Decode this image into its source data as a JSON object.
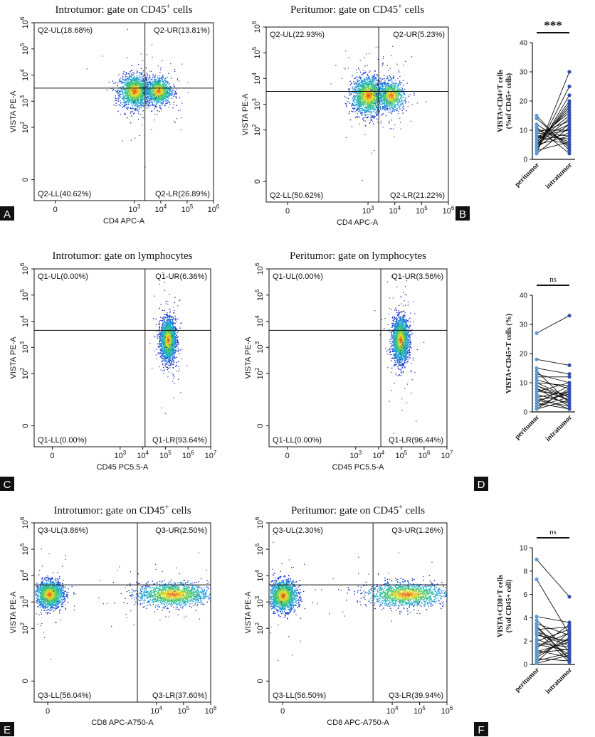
{
  "panels_labels": [
    "A",
    "B",
    "C",
    "D",
    "E",
    "F"
  ],
  "chart_data": [
    {
      "type": "scatter",
      "panel": "A",
      "title_main": "Introtumor: gate on CD45",
      "title_sup": "+",
      "title_tail": " cells",
      "xlabel": "CD4 APC-A",
      "ylabel": "VISTA PE-A",
      "x_ticks": [
        {
          "label": "0",
          "sup": "",
          "v": 0
        },
        {
          "label": "10",
          "sup": "3",
          "v": 3
        },
        {
          "label": "10",
          "sup": "4",
          "v": 4
        },
        {
          "label": "10",
          "sup": "5",
          "v": 5
        },
        {
          "label": "10",
          "sup": "6",
          "v": 6
        }
      ],
      "y_ticks": [
        {
          "label": "0",
          "sup": "",
          "v": 0
        },
        {
          "label": "10",
          "sup": "2",
          "v": 2
        },
        {
          "label": "10",
          "sup": "3",
          "v": 3
        },
        {
          "label": "10",
          "sup": "4",
          "v": 4
        },
        {
          "label": "10",
          "sup": "5",
          "v": 5
        },
        {
          "label": "10",
          "sup": "6",
          "v": 6
        }
      ],
      "xlim": [
        -0.8,
        6
      ],
      "ylim": [
        -0.8,
        6
      ],
      "gate": {
        "x": 3.4,
        "y": 3.5
      },
      "quadrants": {
        "UL": "Q2-UL(18.68%)",
        "UR": "Q2-UR(13.81%)",
        "LL": "Q2-LL(40.62%)",
        "LR": "Q2-LR(26.89%)"
      },
      "clusters": [
        {
          "cx": 3.0,
          "cy": 3.4,
          "sx": 0.28,
          "sy": 0.3,
          "n": 1500
        },
        {
          "cx": 3.9,
          "cy": 3.4,
          "sx": 0.24,
          "sy": 0.25,
          "n": 1000
        }
      ]
    },
    {
      "type": "scatter",
      "panel": "B",
      "title_main": "Peritumor: gate on CD45",
      "title_sup": "+",
      "title_tail": " cells",
      "xlabel": "CD4 APC-A",
      "ylabel": "VISTA PE-A",
      "x_ticks": [
        {
          "label": "0",
          "sup": "",
          "v": 0
        },
        {
          "label": "10",
          "sup": "3",
          "v": 3
        },
        {
          "label": "10",
          "sup": "4",
          "v": 4
        },
        {
          "label": "10",
          "sup": "5",
          "v": 5
        },
        {
          "label": "10",
          "sup": "6",
          "v": 6
        }
      ],
      "y_ticks": [
        {
          "label": "0",
          "sup": "",
          "v": 0
        },
        {
          "label": "10",
          "sup": "2",
          "v": 2
        },
        {
          "label": "10",
          "sup": "3",
          "v": 3
        },
        {
          "label": "10",
          "sup": "4",
          "v": 4
        },
        {
          "label": "10",
          "sup": "5",
          "v": 5
        },
        {
          "label": "10",
          "sup": "6",
          "v": 6
        }
      ],
      "xlim": [
        -0.8,
        6
      ],
      "ylim": [
        -0.8,
        6
      ],
      "gate": {
        "x": 3.4,
        "y": 3.5
      },
      "quadrants": {
        "UL": "Q2-UL(22.93%)",
        "UR": "Q2-UR(5.23%)",
        "LL": "Q2-LL(50.62%)",
        "LR": "Q2-LR(21.22%)"
      },
      "clusters": [
        {
          "cx": 3.0,
          "cy": 3.35,
          "sx": 0.3,
          "sy": 0.35,
          "n": 1700
        },
        {
          "cx": 3.85,
          "cy": 3.35,
          "sx": 0.24,
          "sy": 0.28,
          "n": 800
        }
      ]
    },
    {
      "type": "line",
      "panel": "paired-1",
      "ylabel_line1": "VISTA+CD4+T cells",
      "ylabel_line2": "(%of CD45+ cells)",
      "ylim": [
        0,
        40
      ],
      "y_ticks": [
        0,
        10,
        20,
        30,
        40
      ],
      "categories": [
        "peritumor",
        "intratumor"
      ],
      "significance": "***",
      "peritumor": [
        2,
        3,
        4,
        5,
        6,
        7,
        8,
        9,
        10,
        12,
        14,
        15,
        3,
        5,
        6,
        8,
        2,
        4,
        7,
        9,
        11,
        3,
        5,
        6,
        4,
        8,
        10
      ],
      "intratumor": [
        30,
        25,
        20,
        18,
        15,
        12,
        10,
        8,
        6,
        5,
        4,
        3,
        22,
        14,
        9,
        7,
        11,
        19,
        16,
        13,
        2,
        6,
        8,
        17,
        12,
        5,
        10
      ]
    },
    {
      "type": "scatter",
      "panel": "C",
      "title_main": "Introtumor: gate on lymphocytes",
      "title_sup": "",
      "title_tail": "",
      "xlabel": "CD45 PC5.5-A",
      "ylabel": "VISTA PE-A",
      "x_ticks": [
        {
          "label": "0",
          "sup": "",
          "v": 0
        },
        {
          "label": "10",
          "sup": "3",
          "v": 3
        },
        {
          "label": "10",
          "sup": "4",
          "v": 4
        },
        {
          "label": "10",
          "sup": "5",
          "v": 5
        },
        {
          "label": "10",
          "sup": "6",
          "v": 6
        },
        {
          "label": "10",
          "sup": "7",
          "v": 7
        }
      ],
      "y_ticks": [
        {
          "label": "0",
          "sup": "",
          "v": 0
        },
        {
          "label": "10",
          "sup": "2",
          "v": 2
        },
        {
          "label": "10",
          "sup": "3",
          "v": 3
        },
        {
          "label": "10",
          "sup": "4",
          "v": 4
        },
        {
          "label": "10",
          "sup": "5",
          "v": 5
        },
        {
          "label": "10",
          "sup": "6",
          "v": 6
        }
      ],
      "xlim": [
        -0.8,
        7
      ],
      "ylim": [
        -0.8,
        6
      ],
      "gate": {
        "x": 4.1,
        "y": 3.65
      },
      "quadrants": {
        "UL": "Q1-UL(0.00%)",
        "UR": "Q1-UR(6.36%)",
        "LL": "Q1-LL(0.00%)",
        "LR": "Q1-LR(93.64%)"
      },
      "clusters": [
        {
          "cx": 5.1,
          "cy": 3.3,
          "sx": 0.16,
          "sy": 0.38,
          "n": 2200
        }
      ]
    },
    {
      "type": "scatter",
      "panel": "D",
      "title_main": "Peritumor: gate on lymphocytes",
      "title_sup": "",
      "title_tail": "",
      "xlabel": "CD45 PC5.5-A",
      "ylabel": "VISTA PE-A",
      "x_ticks": [
        {
          "label": "0",
          "sup": "",
          "v": 0
        },
        {
          "label": "10",
          "sup": "3",
          "v": 3
        },
        {
          "label": "10",
          "sup": "4",
          "v": 4
        },
        {
          "label": "10",
          "sup": "5",
          "v": 5
        },
        {
          "label": "10",
          "sup": "6",
          "v": 6
        },
        {
          "label": "10",
          "sup": "7",
          "v": 7
        }
      ],
      "y_ticks": [
        {
          "label": "0",
          "sup": "",
          "v": 0
        },
        {
          "label": "10",
          "sup": "2",
          "v": 2
        },
        {
          "label": "10",
          "sup": "3",
          "v": 3
        },
        {
          "label": "10",
          "sup": "4",
          "v": 4
        },
        {
          "label": "10",
          "sup": "5",
          "v": 5
        },
        {
          "label": "10",
          "sup": "6",
          "v": 6
        }
      ],
      "xlim": [
        -0.8,
        7
      ],
      "ylim": [
        -0.8,
        6
      ],
      "gate": {
        "x": 4.1,
        "y": 3.65
      },
      "quadrants": {
        "UL": "Q1-UL(0.00%)",
        "UR": "Q1-UR(3.56%)",
        "LL": "Q1-LL(0.00%)",
        "LR": "Q1-LR(96.44%)"
      },
      "clusters": [
        {
          "cx": 4.95,
          "cy": 3.3,
          "sx": 0.17,
          "sy": 0.4,
          "n": 2200
        }
      ]
    },
    {
      "type": "line",
      "panel": "paired-2",
      "ylabel_line1": "VISTA+CD45+T cells (%)",
      "ylabel_line2": "",
      "ylim": [
        0,
        40
      ],
      "y_ticks": [
        0,
        10,
        20,
        30,
        40
      ],
      "categories": [
        "peritumor",
        "intratumor"
      ],
      "significance": "ns",
      "peritumor": [
        27,
        18,
        15,
        13,
        11,
        10,
        9,
        8,
        7,
        6,
        5,
        4,
        3,
        2,
        1,
        12,
        9,
        6,
        4,
        3,
        8,
        5,
        2,
        7,
        10,
        14,
        1
      ],
      "intratumor": [
        33,
        16,
        13,
        10,
        8,
        9,
        5,
        4,
        6,
        3,
        7,
        2,
        1,
        5,
        8,
        12,
        4,
        3,
        6,
        9,
        2,
        1,
        7,
        10,
        5,
        3,
        4
      ]
    },
    {
      "type": "scatter",
      "panel": "E",
      "title_main": "Introtumor: gate on CD45",
      "title_sup": "+",
      "title_tail": " cells",
      "xlabel": "CD8 APC-A750-A",
      "ylabel": "VISTA PE-A",
      "x_ticks": [
        {
          "label": "0",
          "sup": "",
          "v": 0
        },
        {
          "label": "10",
          "sup": "4",
          "v": 4
        },
        {
          "label": "10",
          "sup": "5",
          "v": 5
        },
        {
          "label": "10",
          "sup": "6",
          "v": 6
        }
      ],
      "y_ticks": [
        {
          "label": "0",
          "sup": "",
          "v": 0
        },
        {
          "label": "10",
          "sup": "2",
          "v": 2
        },
        {
          "label": "10",
          "sup": "3",
          "v": 3
        },
        {
          "label": "10",
          "sup": "4",
          "v": 4
        },
        {
          "label": "10",
          "sup": "5",
          "v": 5
        },
        {
          "label": "10",
          "sup": "6",
          "v": 6
        }
      ],
      "xlim": [
        -0.5,
        6
      ],
      "ylim": [
        -0.8,
        6
      ],
      "gate": {
        "x": 3.3,
        "y": 3.65
      },
      "quadrants": {
        "UL": "Q3-UL(3.86%)",
        "UR": "Q3-UR(2.50%)",
        "LL": "Q3-LL(56.04%)",
        "LR": "Q3-LR(37.60%)"
      },
      "clusters": [
        {
          "cx": 0.05,
          "cy": 3.3,
          "sx": 0.25,
          "sy": 0.25,
          "n": 1600
        },
        {
          "cx": 4.6,
          "cy": 3.3,
          "sx": 0.65,
          "sy": 0.22,
          "n": 1400
        }
      ]
    },
    {
      "type": "scatter",
      "panel": "peri-E",
      "title_main": "Peritumor: gate on CD45",
      "title_sup": "+",
      "title_tail": " cells",
      "xlabel": "CD8 APC-A750-A",
      "ylabel": "VISTA PE-A",
      "x_ticks": [
        {
          "label": "0",
          "sup": "",
          "v": 0
        },
        {
          "label": "10",
          "sup": "4",
          "v": 4
        },
        {
          "label": "10",
          "sup": "5",
          "v": 5
        },
        {
          "label": "10",
          "sup": "6",
          "v": 6
        }
      ],
      "y_ticks": [
        {
          "label": "0",
          "sup": "",
          "v": 0
        },
        {
          "label": "10",
          "sup": "2",
          "v": 2
        },
        {
          "label": "10",
          "sup": "3",
          "v": 3
        },
        {
          "label": "10",
          "sup": "4",
          "v": 4
        },
        {
          "label": "10",
          "sup": "5",
          "v": 5
        },
        {
          "label": "10",
          "sup": "6",
          "v": 6
        }
      ],
      "xlim": [
        -0.5,
        6
      ],
      "ylim": [
        -0.8,
        6
      ],
      "gate": {
        "x": 3.3,
        "y": 3.65
      },
      "quadrants": {
        "UL": "Q3-UL(2.30%)",
        "UR": "Q3-UR(1.26%)",
        "LL": "Q3-LL(56.50%)",
        "LR": "Q3-LR(39.94%)"
      },
      "clusters": [
        {
          "cx": 0.0,
          "cy": 3.25,
          "sx": 0.25,
          "sy": 0.28,
          "n": 1600
        },
        {
          "cx": 4.5,
          "cy": 3.3,
          "sx": 0.7,
          "sy": 0.22,
          "n": 1400
        }
      ]
    },
    {
      "type": "line",
      "panel": "paired-3",
      "ylabel_line1": "VISTA+CD8+T cells",
      "ylabel_line2": "(%of CD45+ cell)",
      "ylim": [
        0,
        10
      ],
      "y_ticks": [
        0,
        2,
        4,
        6,
        8,
        10
      ],
      "categories": [
        "peritumor",
        "intratumor"
      ],
      "significance": "ns",
      "peritumor": [
        9,
        7.3,
        4.1,
        3.8,
        3.5,
        3.2,
        3.0,
        2.8,
        2.5,
        2.2,
        2.0,
        1.8,
        1.5,
        1.2,
        1.0,
        0.8,
        0.5,
        0.3,
        0.1,
        2.6,
        1.4,
        0.6,
        3.3,
        1.1,
        0.2,
        2.9,
        1.7
      ],
      "intratumor": [
        5.8,
        2.6,
        3.6,
        1.1,
        2.5,
        0.4,
        3.2,
        1.8,
        2.0,
        0.9,
        3.0,
        1.5,
        2.7,
        0.6,
        1.3,
        2.2,
        0.3,
        1.0,
        0.8,
        1.6,
        3.4,
        2.3,
        0.5,
        1.9,
        2.8,
        0.2,
        1.2
      ]
    }
  ]
}
